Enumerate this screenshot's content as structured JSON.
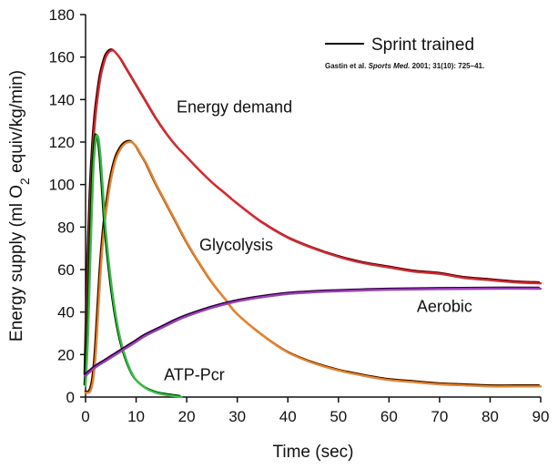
{
  "chart_data": {
    "type": "line",
    "title": "",
    "xlabel": "Time (sec)",
    "ylabel": {
      "prefix": "Energy supply (ml O",
      "subscript": "2",
      "suffix": " equiv/kg/min)"
    },
    "xlim": [
      0,
      90
    ],
    "ylim": [
      0,
      180
    ],
    "x_ticks": [
      0,
      10,
      20,
      30,
      40,
      50,
      60,
      70,
      80,
      90
    ],
    "y_ticks": [
      0,
      20,
      40,
      60,
      80,
      100,
      120,
      140,
      160,
      180
    ],
    "grid": false,
    "legend": {
      "position": "top-right",
      "entries": [
        {
          "name": "Sprint trained",
          "color": "#111111"
        }
      ]
    },
    "citation": {
      "authors": "Gastin et al. ",
      "journal": "Sports Med.",
      "details": " 2001; 31(10): 725–41."
    },
    "series": [
      {
        "name": "Energy demand",
        "color": "#e0242b",
        "points": [
          [
            0,
            10
          ],
          [
            0.5,
            60
          ],
          [
            1,
            95
          ],
          [
            1.5,
            118
          ],
          [
            2,
            133
          ],
          [
            2.5,
            143
          ],
          [
            3,
            151
          ],
          [
            3.5,
            156
          ],
          [
            4,
            160
          ],
          [
            4.5,
            162
          ],
          [
            5,
            163
          ],
          [
            5.5,
            163
          ],
          [
            6,
            162
          ],
          [
            7,
            159
          ],
          [
            8,
            155
          ],
          [
            9,
            151
          ],
          [
            10,
            147
          ],
          [
            12,
            139
          ],
          [
            14,
            131
          ],
          [
            16,
            124
          ],
          [
            18,
            118
          ],
          [
            20,
            113
          ],
          [
            22,
            108
          ],
          [
            25,
            101
          ],
          [
            28,
            95
          ],
          [
            30,
            91
          ],
          [
            35,
            82
          ],
          [
            40,
            75
          ],
          [
            45,
            70
          ],
          [
            50,
            66
          ],
          [
            55,
            63
          ],
          [
            60,
            61
          ],
          [
            65,
            59
          ],
          [
            70,
            58
          ],
          [
            75,
            56
          ],
          [
            80,
            55
          ],
          [
            85,
            54
          ],
          [
            90,
            53.5
          ]
        ]
      },
      {
        "name": "Glycolysis",
        "color": "#f08223",
        "points": [
          [
            0,
            2
          ],
          [
            0.5,
            2
          ],
          [
            1,
            3
          ],
          [
            1.5,
            8
          ],
          [
            2,
            20
          ],
          [
            2.5,
            40
          ],
          [
            3,
            60
          ],
          [
            3.5,
            75
          ],
          [
            4,
            86
          ],
          [
            5,
            102
          ],
          [
            6,
            112
          ],
          [
            7,
            117
          ],
          [
            8,
            119.5
          ],
          [
            9,
            120
          ],
          [
            10,
            118
          ],
          [
            11,
            114
          ],
          [
            12,
            110
          ],
          [
            13,
            105
          ],
          [
            14,
            100
          ],
          [
            16,
            91
          ],
          [
            18,
            82
          ],
          [
            20,
            73
          ],
          [
            22,
            65
          ],
          [
            25,
            54
          ],
          [
            28,
            45
          ],
          [
            30,
            39
          ],
          [
            35,
            29
          ],
          [
            40,
            21
          ],
          [
            45,
            16
          ],
          [
            50,
            12.5
          ],
          [
            55,
            10
          ],
          [
            60,
            8
          ],
          [
            65,
            7
          ],
          [
            70,
            6
          ],
          [
            75,
            5.5
          ],
          [
            80,
            5
          ],
          [
            85,
            5
          ],
          [
            90,
            5
          ]
        ]
      },
      {
        "name": "ATP-Pcr",
        "color": "#2fc23a",
        "points": [
          [
            0,
            5
          ],
          [
            0.5,
            30
          ],
          [
            1,
            70
          ],
          [
            1.5,
            105
          ],
          [
            2,
            121
          ],
          [
            2.3,
            123
          ],
          [
            2.6,
            121
          ],
          [
            3,
            112
          ],
          [
            3.5,
            95
          ],
          [
            4,
            78
          ],
          [
            5,
            55
          ],
          [
            6,
            38
          ],
          [
            7,
            26
          ],
          [
            8,
            18
          ],
          [
            9,
            12
          ],
          [
            10,
            8
          ],
          [
            12,
            4
          ],
          [
            14,
            2
          ],
          [
            16,
            1
          ],
          [
            18,
            0.3
          ],
          [
            19,
            0
          ]
        ]
      },
      {
        "name": "Aerobic",
        "color": "#a63bc7",
        "points": [
          [
            0,
            10
          ],
          [
            2,
            14
          ],
          [
            4,
            17
          ],
          [
            6,
            20
          ],
          [
            8,
            23
          ],
          [
            10,
            26
          ],
          [
            12,
            29
          ],
          [
            15,
            32.5
          ],
          [
            18,
            36
          ],
          [
            20,
            38
          ],
          [
            25,
            42
          ],
          [
            30,
            45
          ],
          [
            35,
            47
          ],
          [
            40,
            48.5
          ],
          [
            45,
            49.3
          ],
          [
            50,
            49.8
          ],
          [
            55,
            50.2
          ],
          [
            60,
            50.5
          ],
          [
            70,
            50.8
          ],
          [
            80,
            51
          ],
          [
            90,
            51
          ]
        ]
      }
    ],
    "curve_labels": [
      {
        "text": "Energy demand",
        "x": 18,
        "y": 134
      },
      {
        "text": "Glycolysis",
        "x": 22.5,
        "y": 69
      },
      {
        "text": "ATP-Pcr",
        "x": 15.5,
        "y": 8
      },
      {
        "text": "Aerobic",
        "x": 65.5,
        "y": 40
      }
    ]
  }
}
